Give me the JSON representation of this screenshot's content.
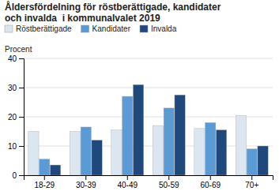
{
  "chart_data": {
    "type": "bar",
    "title": [
      "Åldersfördelning för röstberättigade, kandidater",
      "och invalda  i kommunalvalet 2019"
    ],
    "ylabel": "Procent",
    "categories": [
      "18-29",
      "30-39",
      "40-49",
      "50-59",
      "60-69",
      "70+"
    ],
    "series": [
      {
        "name": "Röstberättigade",
        "color": "#dce6f1",
        "values": [
          15.0,
          15.0,
          15.5,
          17.0,
          16.0,
          20.5
        ]
      },
      {
        "name": "Kandidater",
        "color": "#5b9bd5",
        "values": [
          5.5,
          16.5,
          27.0,
          23.0,
          18.0,
          9.0
        ]
      },
      {
        "name": "Invalda",
        "color": "#1f497d",
        "values": [
          3.5,
          12.0,
          31.0,
          27.5,
          15.5,
          10.0
        ]
      }
    ],
    "ylim": [
      0,
      40
    ],
    "yticks": [
      0,
      10,
      20,
      30,
      40
    ],
    "grid": true,
    "legend": "upper left"
  }
}
